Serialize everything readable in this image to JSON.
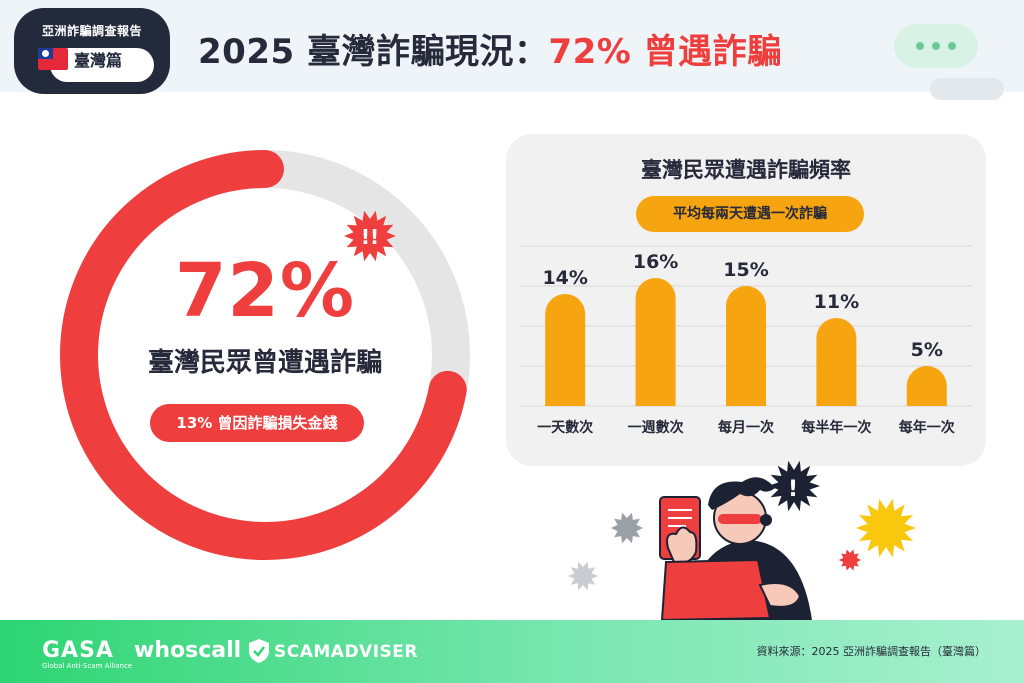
{
  "header": {
    "badge_report": "亞洲詐騙調查報告",
    "badge_region": "臺灣篇",
    "title_prefix": "2025 臺灣詐騙現況：",
    "title_highlight": "72% 曾遇詐騙"
  },
  "donut": {
    "value_text": "72%",
    "label": "臺灣民眾曾遭遇詐騙",
    "loss_note": "13% 曾因詐騙損失金錢"
  },
  "colors": {
    "red": "#ef3e3e",
    "orange": "#f6a510",
    "gray_track": "#e5e5e5",
    "dark": "#262a3a",
    "green": "#2ed573"
  },
  "frequency": {
    "title": "臺灣民眾遭遇詐騙頻率",
    "note": "平均每兩天遭遇一次詐騙"
  },
  "chart_data": [
    {
      "type": "pie",
      "categories": [
        "臺灣民眾曾遭遇詐騙"
      ],
      "values": [
        72
      ]
    },
    {
      "type": "bar",
      "title": "臺灣民眾遭遇詐騙頻率",
      "categories": [
        "一天數次",
        "一週數次",
        "每月一次",
        "每半年一次",
        "每年一次"
      ],
      "values": [
        14,
        16,
        15,
        11,
        5
      ],
      "value_labels": [
        "14%",
        "16%",
        "15%",
        "11%",
        "5%"
      ],
      "ylim": [
        0,
        20
      ],
      "grid": true
    }
  ],
  "footer": {
    "logo_gasa": "GASA",
    "logo_gasa_sub": "Global Anti-Scam Alliance",
    "logo_whoscall": "whoscall",
    "logo_scamadviser": "SCAMADVISER",
    "source": "資料來源：2025 亞洲詐騙調查報告（臺灣篇）"
  },
  "icons": [
    "taiwan-flag-icon",
    "chat-bubble-icon",
    "alert-burst-icon",
    "shield-icon",
    "worried-person-illustration"
  ]
}
